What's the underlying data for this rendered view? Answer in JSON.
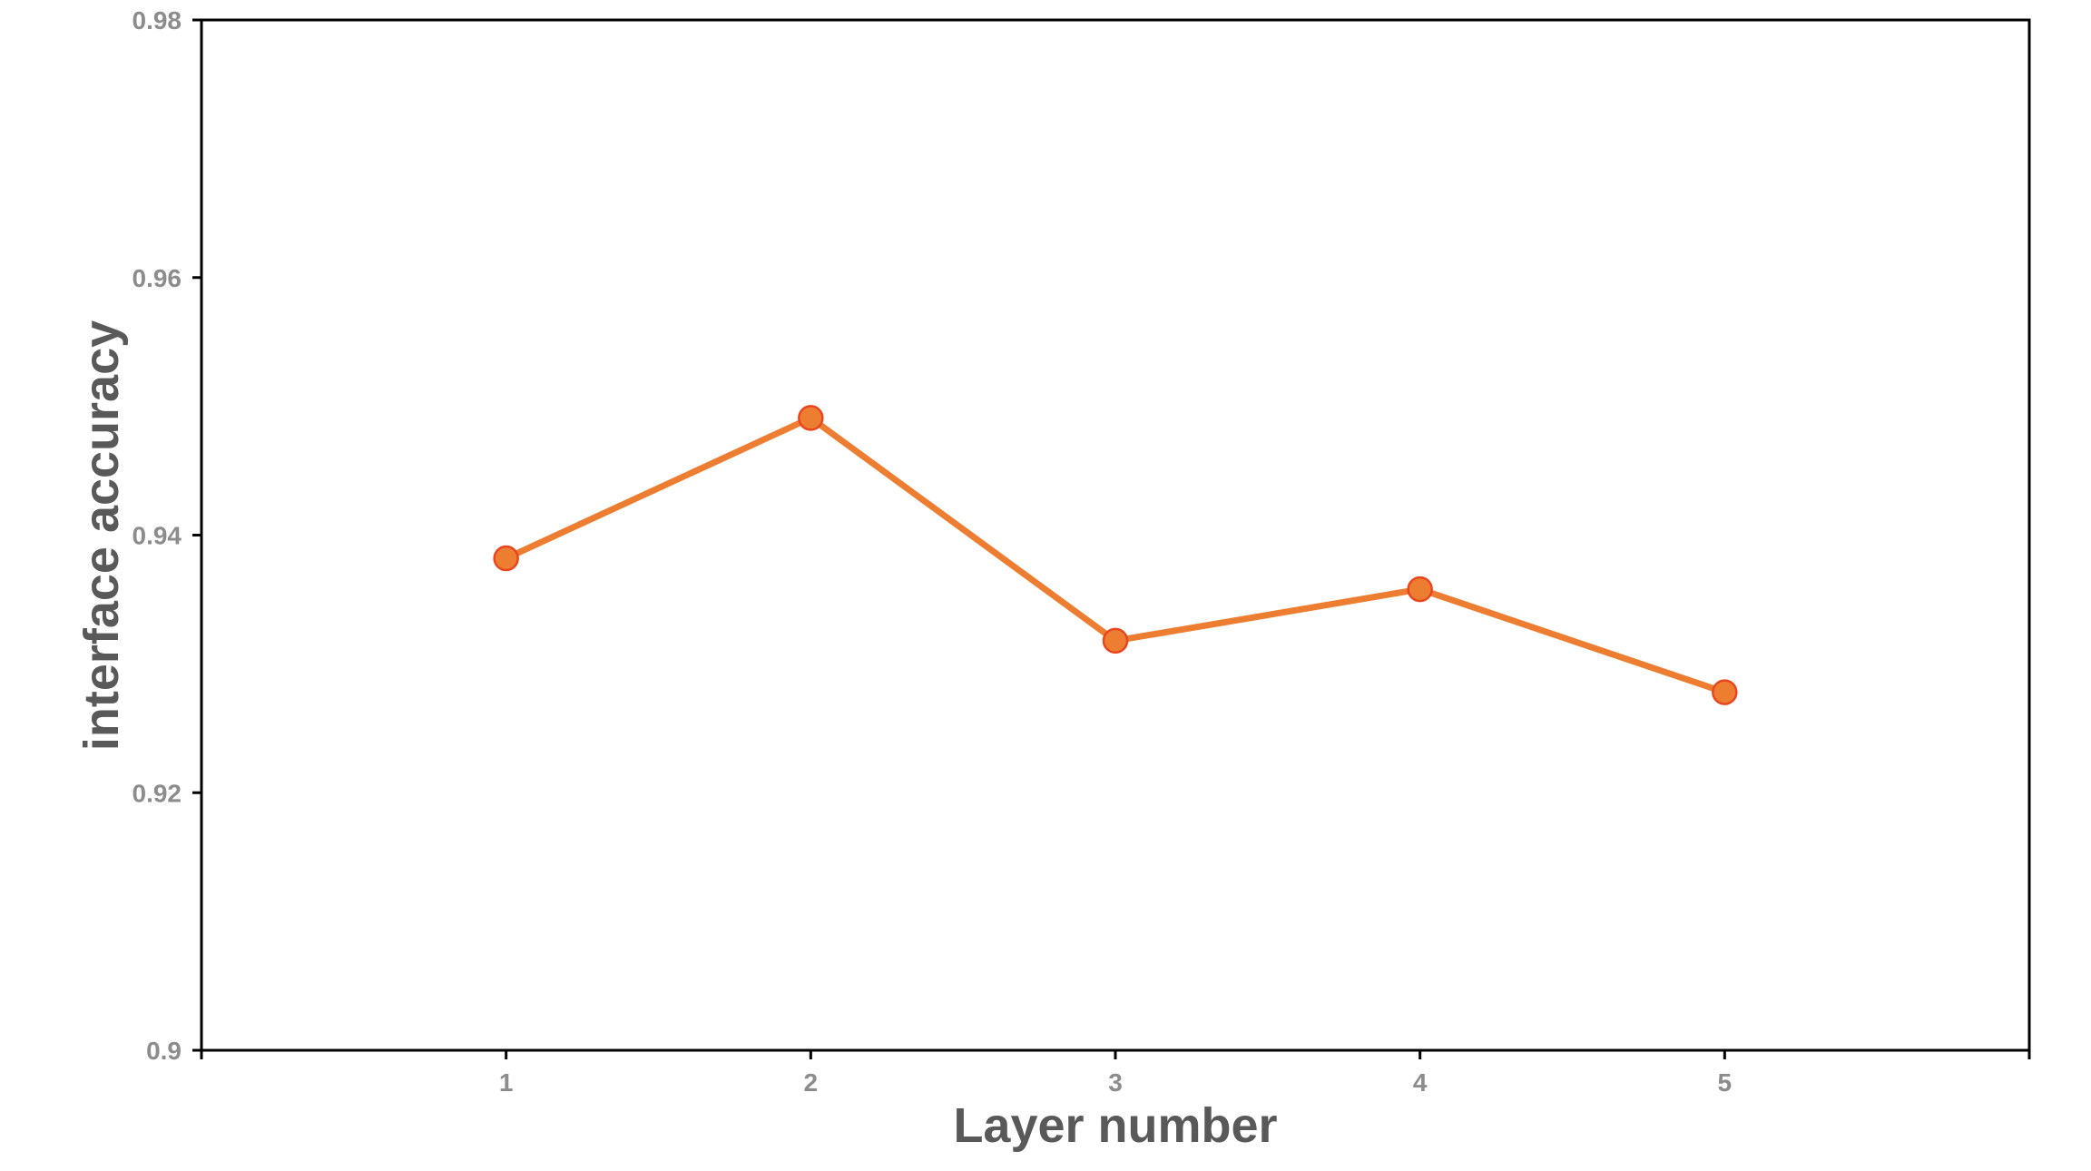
{
  "chart_data": {
    "type": "line",
    "title": "",
    "xlabel": "Layer number",
    "ylabel": "interface accuracy",
    "x": [
      1,
      2,
      3,
      4,
      5
    ],
    "x_tick_labels": [
      "1",
      "2",
      "3",
      "4",
      "5"
    ],
    "xlim": [
      0,
      6
    ],
    "ylim": [
      0.9,
      0.98
    ],
    "y_ticks": [
      0.9,
      0.92,
      0.94,
      0.96,
      0.98
    ],
    "y_tick_labels": [
      "0.9",
      "0.92",
      "0.94",
      "0.96",
      "0.98"
    ],
    "grid": false,
    "legend": "none",
    "series": [
      {
        "values": [
          0.9382,
          0.9491,
          0.9318,
          0.9358,
          0.9278
        ],
        "color": "#ED7D31",
        "marker_edge_color": "#E8461F",
        "marker": "circle"
      }
    ]
  }
}
